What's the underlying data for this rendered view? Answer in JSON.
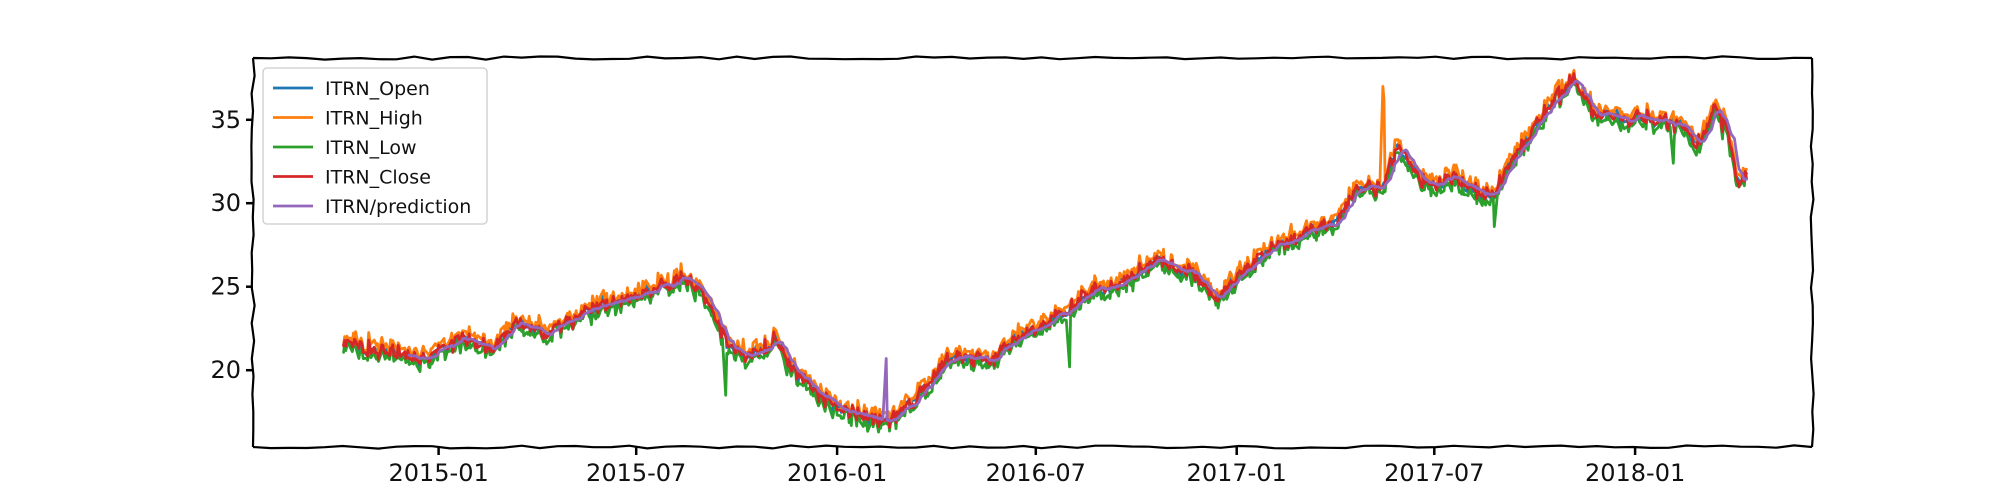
{
  "chart_data": {
    "type": "line",
    "title": "",
    "xlabel": "",
    "ylabel": "",
    "x_start": "2014-10-06",
    "x_end": "2018-04-13",
    "xlim": [
      "2014-07-15",
      "2018-06-12"
    ],
    "ylim": [
      15.4,
      38.7
    ],
    "x_tick_labels": [
      "2015-01",
      "2015-07",
      "2016-01",
      "2016-07",
      "2017-01",
      "2017-07",
      "2018-01"
    ],
    "y_ticks": [
      20,
      25,
      30,
      35
    ],
    "grid": false,
    "legend": {
      "position": "top-left"
    },
    "anchors": [
      [
        "2014-10-06",
        21.9
      ],
      [
        "2014-10-20",
        21.3
      ],
      [
        "2014-11-20",
        21.2
      ],
      [
        "2014-12-10",
        20.6
      ],
      [
        "2015-01-05",
        21.3
      ],
      [
        "2015-01-28",
        22.0
      ],
      [
        "2015-02-20",
        21.2
      ],
      [
        "2015-03-12",
        22.8
      ],
      [
        "2015-04-08",
        22.3
      ],
      [
        "2015-05-10",
        23.2
      ],
      [
        "2015-06-12",
        24.2
      ],
      [
        "2015-07-15",
        24.8
      ],
      [
        "2015-08-15",
        25.6
      ],
      [
        "2015-09-05",
        24.2
      ],
      [
        "2015-09-20",
        22.0
      ],
      [
        "2015-10-10",
        20.7
      ],
      [
        "2015-11-05",
        21.8
      ],
      [
        "2015-11-25",
        19.8
      ],
      [
        "2015-12-25",
        18.0
      ],
      [
        "2016-01-15",
        17.4
      ],
      [
        "2016-02-10",
        17.0
      ],
      [
        "2016-02-25",
        17.3
      ],
      [
        "2016-03-15",
        18.4
      ],
      [
        "2016-04-15",
        20.9
      ],
      [
        "2016-05-20",
        20.4
      ],
      [
        "2016-06-10",
        21.9
      ],
      [
        "2016-07-10",
        22.6
      ],
      [
        "2016-08-15",
        24.5
      ],
      [
        "2016-09-20",
        25.3
      ],
      [
        "2016-10-20",
        26.6
      ],
      [
        "2016-11-25",
        25.8
      ],
      [
        "2016-12-10",
        24.3
      ],
      [
        "2017-01-10",
        26.0
      ],
      [
        "2017-02-05",
        27.5
      ],
      [
        "2017-03-05",
        28.2
      ],
      [
        "2017-04-01",
        28.9
      ],
      [
        "2017-04-20",
        30.8
      ],
      [
        "2017-05-15",
        31.0
      ],
      [
        "2017-05-28",
        33.4
      ],
      [
        "2017-06-20",
        31.2
      ],
      [
        "2017-07-20",
        31.5
      ],
      [
        "2017-08-20",
        30.3
      ],
      [
        "2017-09-15",
        33.0
      ],
      [
        "2017-10-15",
        35.8
      ],
      [
        "2017-11-05",
        37.5
      ],
      [
        "2017-11-25",
        35.4
      ],
      [
        "2017-12-20",
        35.0
      ],
      [
        "2018-01-15",
        35.0
      ],
      [
        "2018-02-15",
        34.5
      ],
      [
        "2018-03-01",
        33.6
      ],
      [
        "2018-03-15",
        35.8
      ],
      [
        "2018-03-28",
        34.0
      ],
      [
        "2018-04-05",
        31.0
      ],
      [
        "2018-04-13",
        31.9
      ]
    ],
    "series": [
      {
        "name": "ITRN_Open",
        "color": "#1f77b4"
      },
      {
        "name": "ITRN_High",
        "color": "#ff7f0e"
      },
      {
        "name": "ITRN_Low",
        "color": "#2ca02c"
      },
      {
        "name": "ITRN_Close",
        "color": "#d62728"
      },
      {
        "name": "ITRN/prediction",
        "color": "#9467bd"
      }
    ],
    "annotations": [
      {
        "date": "2016-02-15",
        "series": "ITRN/prediction",
        "value": 20.7
      },
      {
        "date": "2017-05-15",
        "series": "ITRN_High",
        "value": 37.0
      },
      {
        "date": "2015-09-20",
        "series": "ITRN_Low",
        "value": 18.5
      }
    ]
  }
}
